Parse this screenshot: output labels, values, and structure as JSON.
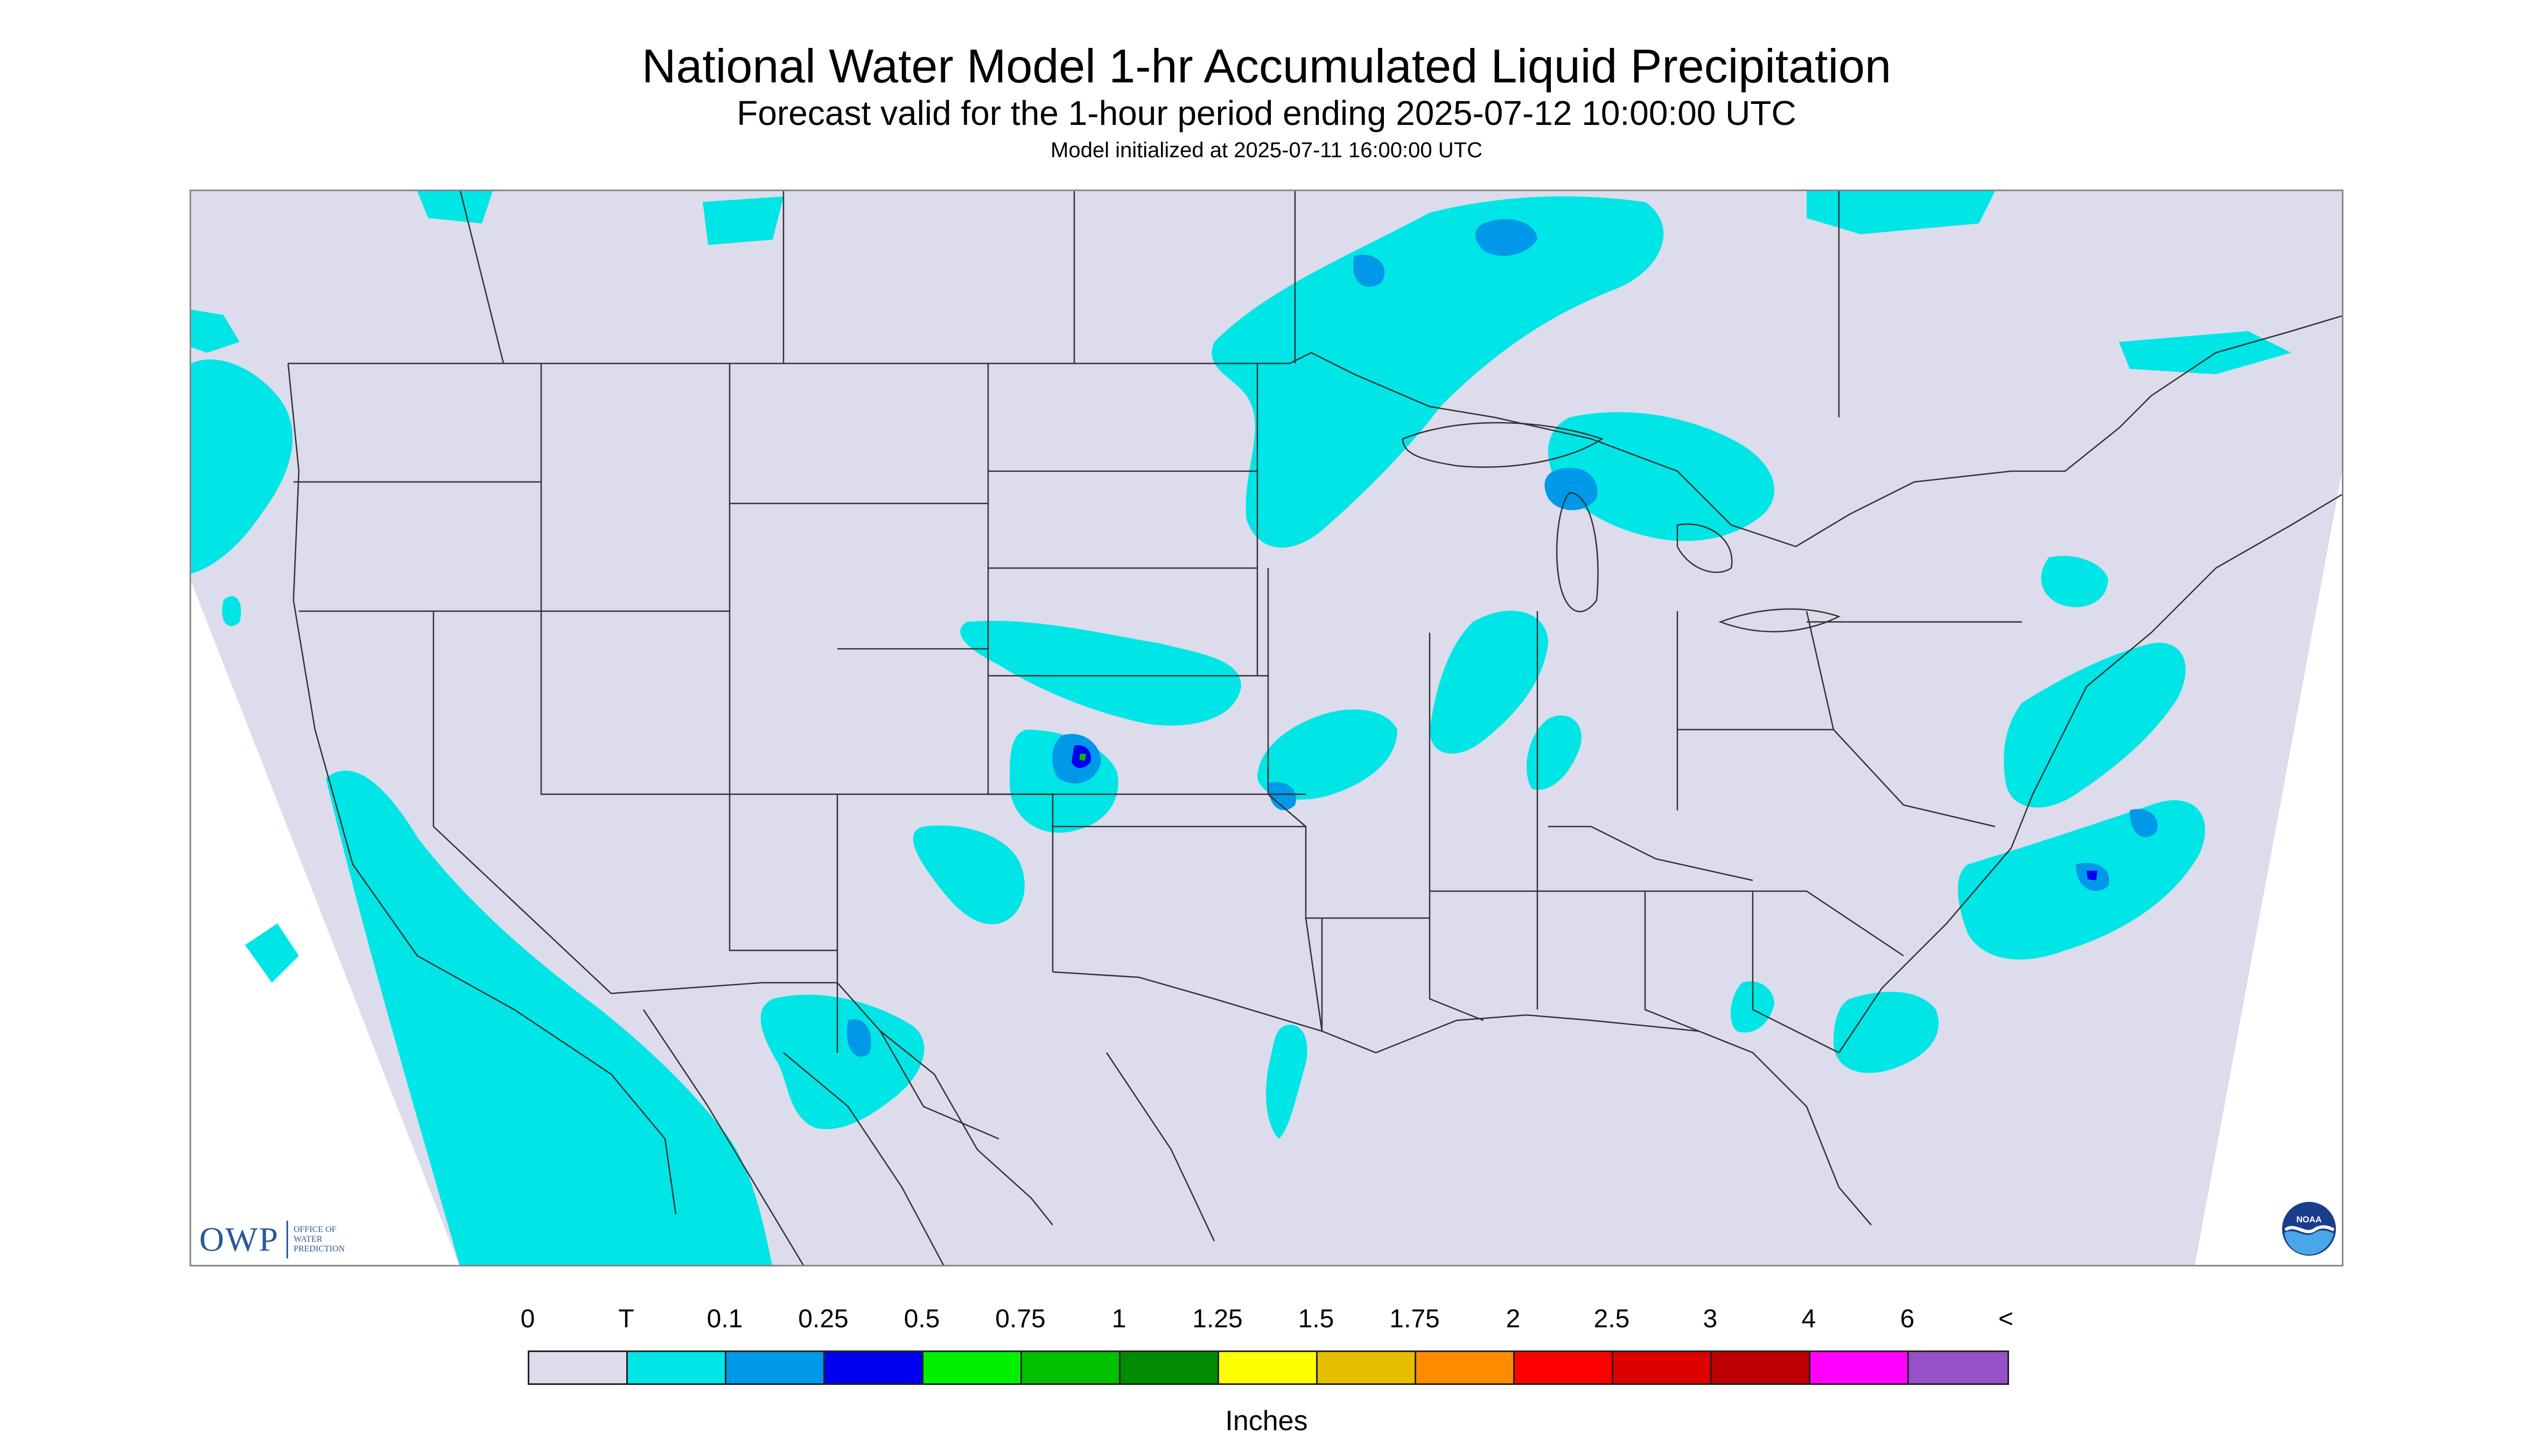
{
  "title": "National Water Model 1-hr Accumulated Liquid Precipitation",
  "subtitle": "Forecast valid for the 1-hour period ending 2025-07-12 10:00:00 UTC",
  "init_line": "Model initialized at 2025-07-11 16:00:00 UTC",
  "logos": {
    "owp_mark": "OWP",
    "owp_text_1": "Office of",
    "owp_text_2": "Water",
    "owp_text_3": "Prediction",
    "noaa": "NOAA"
  },
  "legend": {
    "labels": [
      "0",
      "T",
      "0.1",
      "0.25",
      "0.5",
      "0.75",
      "1",
      "1.25",
      "1.5",
      "1.75",
      "2",
      "2.5",
      "3",
      "4",
      "6",
      "<"
    ],
    "colors": [
      "#dcdcec",
      "#00e5e5",
      "#0098e8",
      "#0000f0",
      "#00f000",
      "#00c000",
      "#008c00",
      "#ffff00",
      "#e6be00",
      "#ff8c00",
      "#ff0000",
      "#dc0000",
      "#be0000",
      "#ff00ff",
      "#9650c8"
    ],
    "units": "Inches"
  },
  "colors": {
    "background": "#dcdcec",
    "trace": "#00e5e5",
    "light": "#0098e8",
    "moderate": "#0000f0",
    "heavy": "#00c000",
    "border": "#333333"
  }
}
